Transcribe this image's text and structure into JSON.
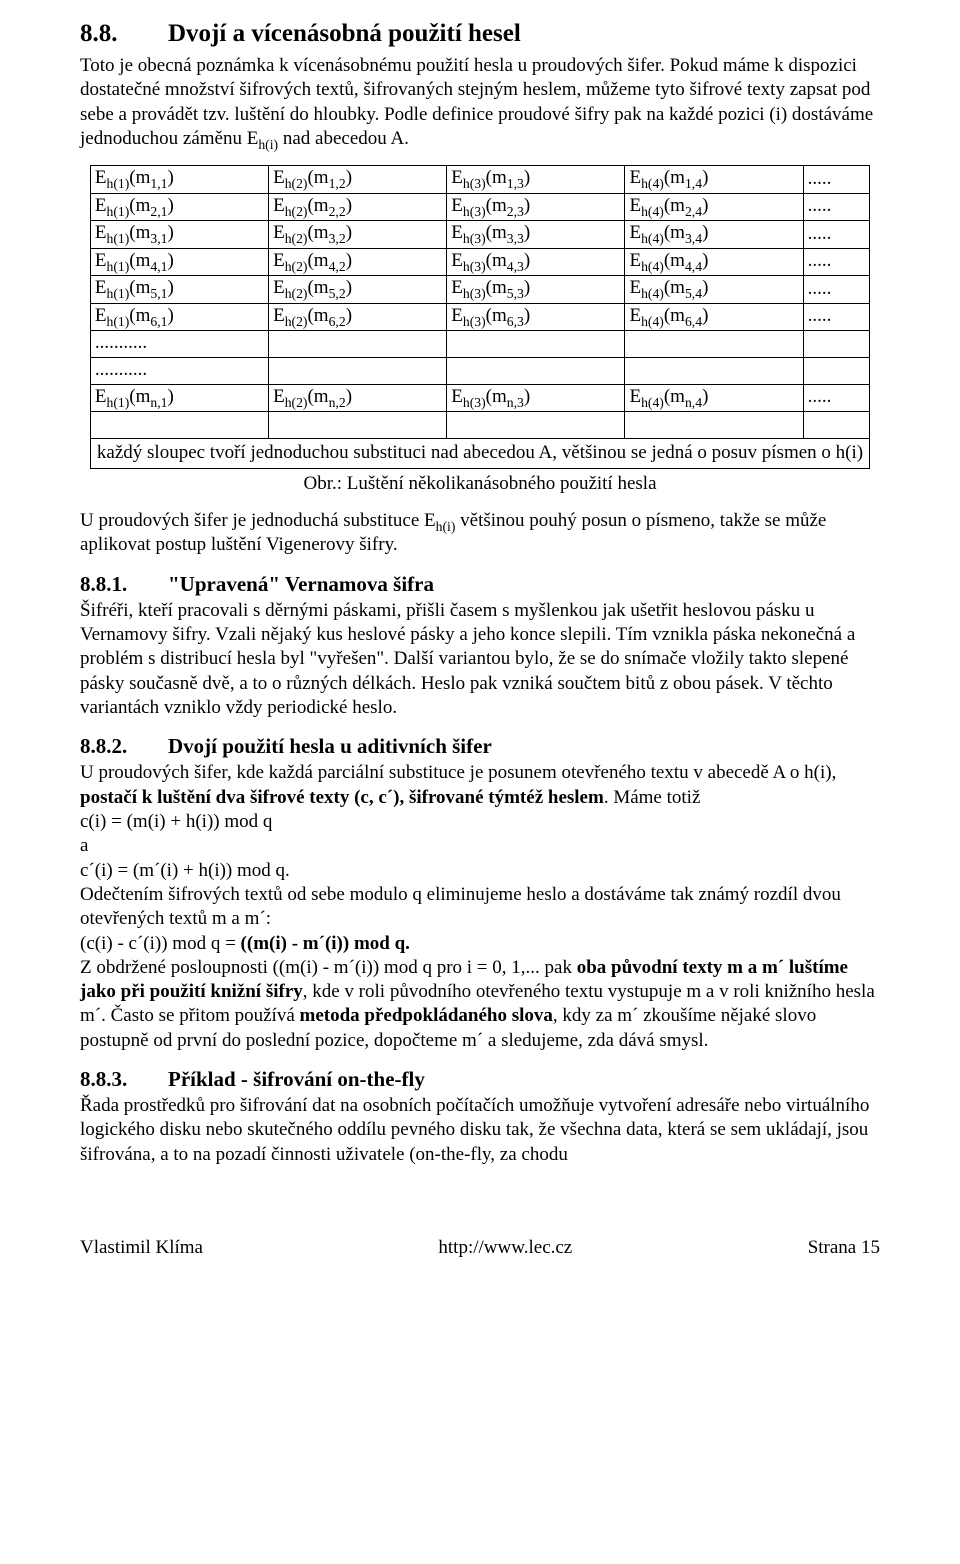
{
  "section": {
    "number": "8.8.",
    "title": "Dvojí a vícenásobná použití hesel",
    "p1": "Toto je obecná poznámka k vícenásobnému použití hesla u proudových šifer. Pokud máme k dispozici dostatečné množství šifrových textů, šifrovaných stejným heslem, můžeme tyto šifrové texty zapsat pod sebe a provádět tzv. luštění do hloubky. Podle definice proudové šifry pak na každé pozici (i) dostáváme jednoduchou záměnu Eh(i) nad abecedou A."
  },
  "table": {
    "row_indices": [
      "1",
      "2",
      "3",
      "4",
      "5",
      "6"
    ],
    "m_indices": [
      "1",
      "2",
      "3",
      "4",
      "5",
      "6"
    ],
    "ellipsis": ".....",
    "dotrow": "...........",
    "n_row": "n",
    "footer": "každý sloupec tvoří jednoduchou substituci nad abecedou A, většinou se jedná o posuv písmen o h(i)",
    "caption": "Obr.: Luštění několikanásobného použití hesla"
  },
  "afterTable": "U proudových šifer je jednoduchá substituce Eh(i) většinou pouhý posun o písmeno, takže se může aplikovat postup luštění Vigenerovy šifry.",
  "sub1": {
    "number": "8.8.1.",
    "title": "\"Upravená\" Vernamova šifra",
    "p": "Šifréři, kteří pracovali s děrnými páskami, přišli časem s myšlenkou jak ušetřit heslovou pásku u Vernamovy šifry. Vzali nějaký kus heslové pásky a jeho konce slepili. Tím vznikla páska nekonečná a problém s distribucí hesla byl \"vyřešen\". Další variantou bylo, že se do snímače vložily takto slepené pásky současně dvě, a to o různých délkách. Heslo pak vzniká součtem bitů z obou pásek. V těchto variantách vzniklo vždy periodické heslo."
  },
  "sub2": {
    "number": "8.8.2.",
    "title": "Dvojí použití hesla u aditivních šifer",
    "l1": "U proudových šifer, kde každá parciální substituce je posunem otevřeného textu v abecedě A o h(i), ",
    "b1": "postačí k luštění dva šifrové texty (c, c´), šifrované týmtéž heslem",
    "l2": ". Máme totiž",
    "eq1": "c(i) = (m(i) + h(i)) mod q",
    "and": "a",
    "eq2": "c´(i) = (m´(i) + h(i)) mod q.",
    "l3": "Odečtením šifrových textů od sebe modulo q eliminujeme heslo a dostáváme tak známý rozdíl dvou otevřených textů m a m´:",
    "eq3a": "(c(i) - c´(i)) mod q = ",
    "eq3b": "((m(i) - m´(i)) mod q.",
    "l4a": "Z obdržené posloupnosti ((m(i) - m´(i)) mod q pro i = 0, 1,... pak ",
    "b2": "oba původní texty m a m´ luštíme jako při použití knižní šifry",
    "l4b": ", kde v roli původního otevřeného textu vystupuje m a v roli knižního hesla m´. Často se přitom používá ",
    "b3": "metoda předpokládaného slova",
    "l4c": ", kdy za m´ zkoušíme nějaké slovo postupně od první do poslední pozice, dopočteme m´ a sledujeme, zda dává smysl."
  },
  "sub3": {
    "number": "8.8.3.",
    "title": "Příklad - šifrování on-the-fly",
    "p": "Řada prostředků pro šifrování dat na osobních počítačích umožňuje vytvoření adresáře nebo virtuálního logického disku nebo skutečného oddílu pevného disku tak, že všechna data, která se sem ukládají, jsou šifrována, a to na pozadí činnosti uživatele (on-the-fly, za chodu"
  },
  "footer": {
    "left": "Vlastimil Klíma",
    "center": "http://www.lec.cz",
    "right": "Strana 15"
  }
}
